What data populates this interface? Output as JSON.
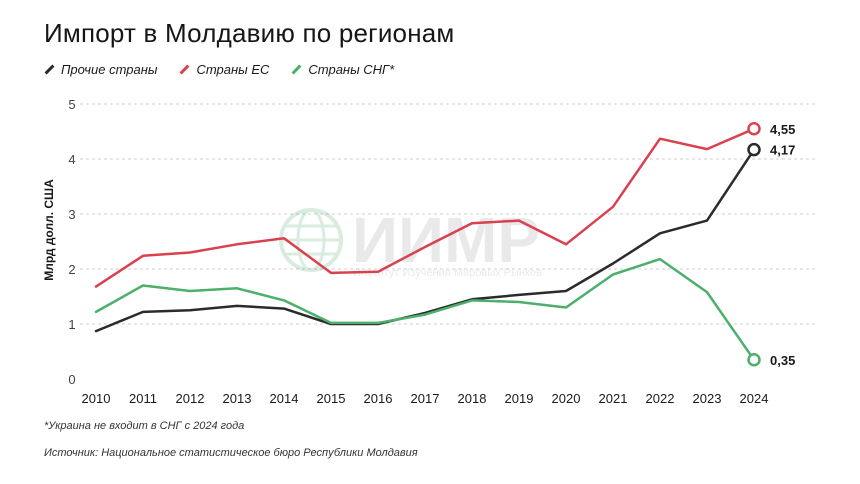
{
  "header": {
    "title": "Импорт в Молдавию по регионам"
  },
  "legend": [
    {
      "label": "Прочие страны",
      "color": "#2b2b2b"
    },
    {
      "label": "Страны ЕС",
      "color": "#d9414f"
    },
    {
      "label": "Страны СНГ*",
      "color": "#4caf6b"
    }
  ],
  "notes": {
    "footnote": "*Украина не входит в СНГ с 2024 года",
    "source": "Источник: Национальное статистическое бюро Республики Молдавия"
  },
  "watermark": {
    "text": "ИИМР",
    "subtitle": "Институт Изучения Мировых Рынков"
  },
  "chart_data": {
    "type": "line",
    "title": "Импорт в Молдавию по регионам",
    "xlabel": "",
    "ylabel": "Млрд долл. США",
    "ylim": [
      0,
      5
    ],
    "yticks": [
      "0",
      "1",
      "2",
      "3",
      "4",
      "5"
    ],
    "x": [
      "2010",
      "2011",
      "2012",
      "2013",
      "2014",
      "2015",
      "2016",
      "2017",
      "2018",
      "2019",
      "2020",
      "2021",
      "2022",
      "2023",
      "2024"
    ],
    "series": [
      {
        "name": "Прочие страны",
        "color": "#2b2b2b",
        "values": [
          0.87,
          1.22,
          1.25,
          1.33,
          1.28,
          1.0,
          1.0,
          1.2,
          1.45,
          1.53,
          1.6,
          2.1,
          2.65,
          2.88,
          4.17
        ],
        "end_label": "4,17"
      },
      {
        "name": "Страны ЕС",
        "color": "#d9414f",
        "values": [
          1.68,
          2.24,
          2.3,
          2.45,
          2.56,
          1.93,
          1.95,
          2.4,
          2.83,
          2.88,
          2.45,
          3.13,
          4.37,
          4.18,
          4.55
        ],
        "end_label": "4,55"
      },
      {
        "name": "Страны СНГ*",
        "color": "#4caf6b",
        "values": [
          1.22,
          1.7,
          1.6,
          1.65,
          1.43,
          1.02,
          1.02,
          1.17,
          1.43,
          1.4,
          1.3,
          1.9,
          2.18,
          1.58,
          0.35
        ],
        "end_label": "0,35"
      }
    ]
  }
}
